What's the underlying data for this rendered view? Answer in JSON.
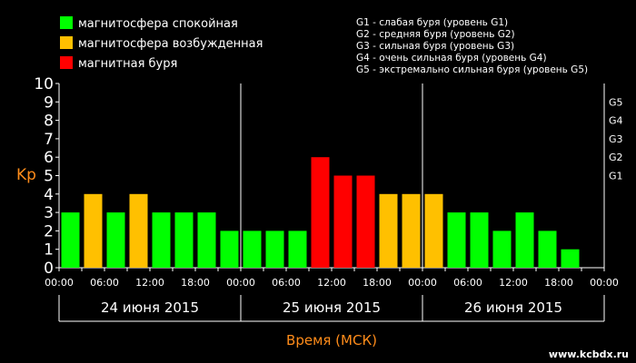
{
  "legend": [
    {
      "label": "магнитосфера спокойная",
      "color": "#00ff00"
    },
    {
      "label": "магнитосфера возбужденная",
      "color": "#ffc000"
    },
    {
      "label": "магнитная буря",
      "color": "#ff0000"
    }
  ],
  "g_legend": [
    "G1 - слабая буря (уровень G1)",
    "G2 - средняя буря (уровень G2)",
    "G3 - сильная буря (уровень G3)",
    "G4 - очень сильная буря (уровень G4)",
    "G5 - экстремально сильная буря (уровень G5)"
  ],
  "site": "www.kcbdx.ru",
  "chart_data": {
    "type": "bar",
    "ylabel": "Kp",
    "xlabel": "Время (МСК)",
    "ylim": [
      0,
      10
    ],
    "yticks": [
      "0",
      "1",
      "2",
      "3",
      "4",
      "5",
      "6",
      "7",
      "8",
      "9",
      "10"
    ],
    "g_ticks": [
      {
        "label": "G1",
        "kp": 5
      },
      {
        "label": "G2",
        "kp": 6
      },
      {
        "label": "G3",
        "kp": 7
      },
      {
        "label": "G4",
        "kp": 8
      },
      {
        "label": "G5",
        "kp": 9
      }
    ],
    "x_tick_labels": [
      "00:00",
      "06:00",
      "12:00",
      "18:00",
      "00:00",
      "06:00",
      "12:00",
      "18:00",
      "00:00",
      "06:00",
      "12:00",
      "18:00",
      "00:00"
    ],
    "days": [
      "24 июня 2015",
      "25 июня 2015",
      "26 июня 2015"
    ],
    "values": [
      3,
      4,
      3,
      4,
      3,
      3,
      3,
      2,
      2,
      2,
      2,
      6,
      5,
      5,
      4,
      4,
      4,
      3,
      3,
      2,
      3,
      2,
      1
    ],
    "colors": {
      "quiet": "#00ff00",
      "active": "#ffc000",
      "storm": "#ff0000"
    },
    "grid": false
  }
}
